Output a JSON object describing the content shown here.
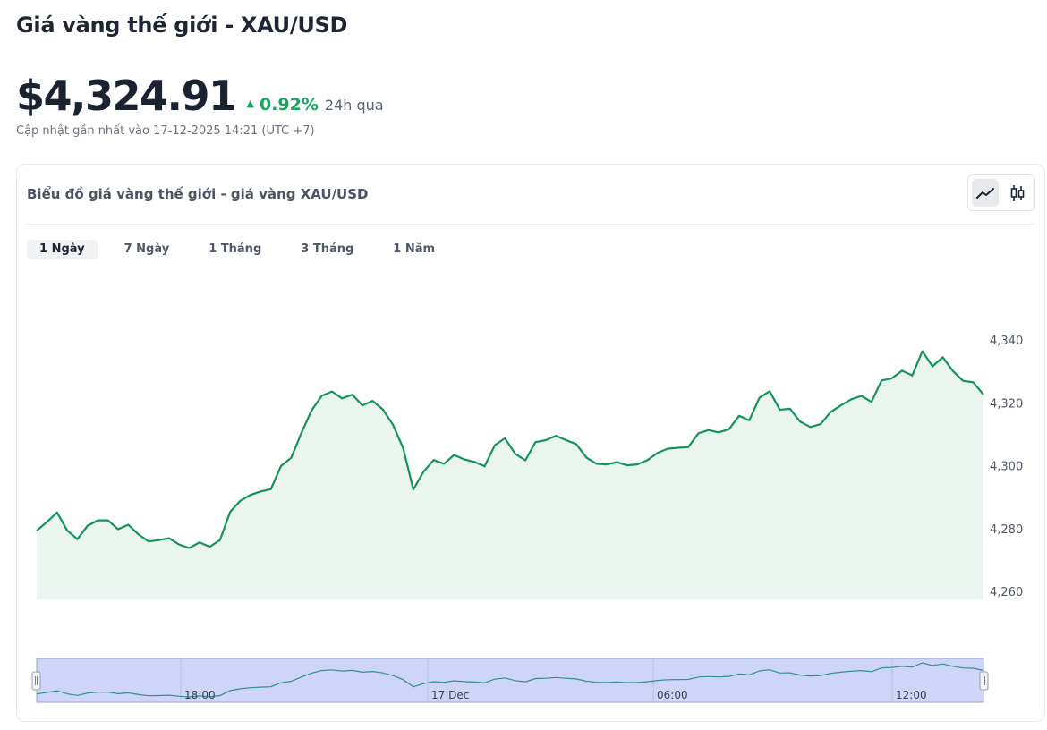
{
  "header": {
    "title": "Giá vàng thế giới - XAU/USD",
    "price": "$4,324.91",
    "change_pct": "0.92%",
    "change_period": "24h qua",
    "updated": "Cập nhật gần nhất vào 17-12-2025 14:21 (UTC +7)"
  },
  "chart_card": {
    "title": "Biểu đồ giá vàng thế giới - giá vàng XAU/USD",
    "chart_types": [
      {
        "name": "line",
        "icon": "line-chart-icon",
        "active": true
      },
      {
        "name": "candlestick",
        "icon": "candlestick-icon",
        "active": false
      }
    ],
    "tabs": [
      {
        "label": "1 Ngày",
        "active": true
      },
      {
        "label": "7 Ngày",
        "active": false
      },
      {
        "label": "1 Tháng",
        "active": false
      },
      {
        "label": "3 Tháng",
        "active": false
      },
      {
        "label": "1 Năm",
        "active": false
      }
    ]
  },
  "colors": {
    "line": "#14935a",
    "area": "#e9f5ee",
    "positive": "#18a35f",
    "navigator_fill": "#cfd5f7",
    "navigator_line": "#2f8f9a"
  },
  "chart_data": {
    "type": "area",
    "y_axis_position": "right",
    "ylim": [
      4260,
      4340
    ],
    "y_ticks": [
      4260,
      4280,
      4300,
      4320,
      4340
    ],
    "y_tick_labels": [
      "4,260",
      "4,280",
      "4,300",
      "4,320",
      "4,340"
    ],
    "values": [
      4279.3,
      4282.1,
      4285.1,
      4279.4,
      4276.6,
      4280.9,
      4282.6,
      4282.6,
      4279.8,
      4281.2,
      4278.1,
      4275.9,
      4276.3,
      4276.9,
      4274.9,
      4273.8,
      4275.6,
      4274.2,
      4276.3,
      4285.3,
      4288.8,
      4290.7,
      4291.8,
      4292.5,
      4299.9,
      4302.5,
      4310.4,
      4317.6,
      4322.2,
      4323.6,
      4321.4,
      4322.6,
      4319.2,
      4320.6,
      4317.9,
      4313.0,
      4305.6,
      4292.4,
      4298.1,
      4301.8,
      4300.6,
      4303.4,
      4302.0,
      4301.2,
      4299.8,
      4306.5,
      4308.7,
      4303.8,
      4301.7,
      4307.5,
      4308.1,
      4309.5,
      4308.1,
      4306.9,
      4302.6,
      4300.6,
      4300.4,
      4301.1,
      4300.1,
      4300.4,
      4301.8,
      4304.1,
      4305.4,
      4305.7,
      4305.9,
      4310.3,
      4311.3,
      4310.6,
      4311.6,
      4315.9,
      4314.4,
      4321.6,
      4323.7,
      4317.8,
      4318.1,
      4314.0,
      4312.3,
      4313.2,
      4317.1,
      4319.2,
      4321.1,
      4322.2,
      4320.3,
      4327.1,
      4327.8,
      4330.2,
      4328.7,
      4336.4,
      4331.6,
      4334.5,
      4330.1,
      4327.0,
      4326.5,
      4322.6
    ],
    "navigator": {
      "labels": [
        "18:00",
        "17 Dec",
        "06:00",
        "12:00"
      ]
    }
  }
}
